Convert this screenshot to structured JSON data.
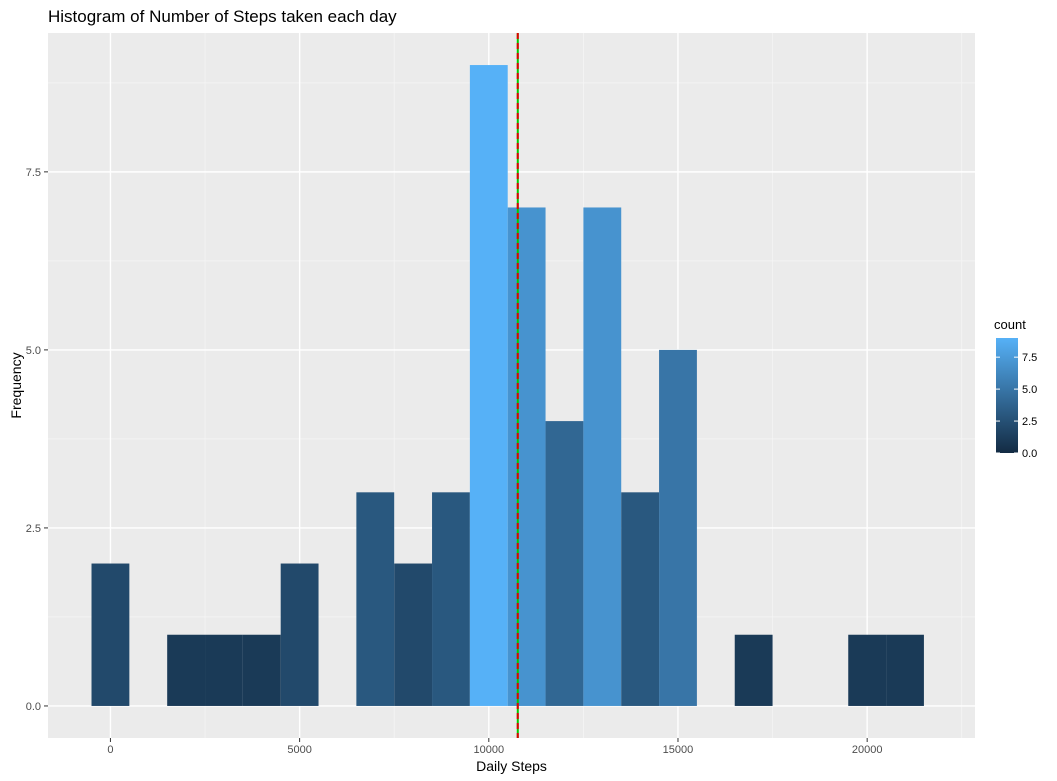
{
  "chart_data": {
    "type": "bar",
    "title": "Histogram of Number of Steps taken each day",
    "xlabel": "Daily Steps",
    "ylabel": "Frequency",
    "binwidth": 1000,
    "bins": [
      {
        "x": 0,
        "count": 2
      },
      {
        "x": 2000,
        "count": 1
      },
      {
        "x": 3000,
        "count": 1
      },
      {
        "x": 4000,
        "count": 1
      },
      {
        "x": 5000,
        "count": 2
      },
      {
        "x": 7000,
        "count": 3
      },
      {
        "x": 8000,
        "count": 2
      },
      {
        "x": 9000,
        "count": 3
      },
      {
        "x": 10000,
        "count": 9
      },
      {
        "x": 11000,
        "count": 7
      },
      {
        "x": 12000,
        "count": 4
      },
      {
        "x": 13000,
        "count": 7
      },
      {
        "x": 14000,
        "count": 3
      },
      {
        "x": 15000,
        "count": 5
      },
      {
        "x": 17000,
        "count": 1
      },
      {
        "x": 20000,
        "count": 1
      },
      {
        "x": 21000,
        "count": 1
      }
    ],
    "xlim": [
      -1650,
      22850
    ],
    "ylim": [
      -0.45,
      9.45
    ],
    "x_ticks": [
      0,
      5000,
      10000,
      15000,
      20000
    ],
    "x_tick_labels": [
      "0",
      "5000",
      "10000",
      "15000",
      "20000"
    ],
    "y_ticks": [
      0,
      2.5,
      5,
      7.5
    ],
    "y_tick_labels": [
      "0.0",
      "2.5",
      "5.0",
      "7.5"
    ],
    "x_minor_ticks": [
      2500,
      7500,
      12500,
      17500,
      22500
    ],
    "y_minor_ticks": [
      1.25,
      3.75,
      6.25,
      8.75
    ],
    "vlines": [
      {
        "x": 10766,
        "color": "#00cc00",
        "style": "solid"
      },
      {
        "x": 10765,
        "color": "#e00000",
        "style": "dashed"
      }
    ],
    "grid": true,
    "colors": {
      "panel_background": "#ebebeb",
      "grid_major": "#ffffff",
      "grid_minor": "#f5f5f5",
      "gradient_low": "#132B43",
      "gradient_high": "#56B1F7"
    },
    "legend": {
      "title": "count",
      "placement": "right",
      "ticks": [
        0,
        2.5,
        5,
        7.5
      ],
      "tick_labels": [
        "0.0",
        "2.5",
        "5.0",
        "7.5"
      ],
      "min": 0,
      "max": 9
    }
  }
}
